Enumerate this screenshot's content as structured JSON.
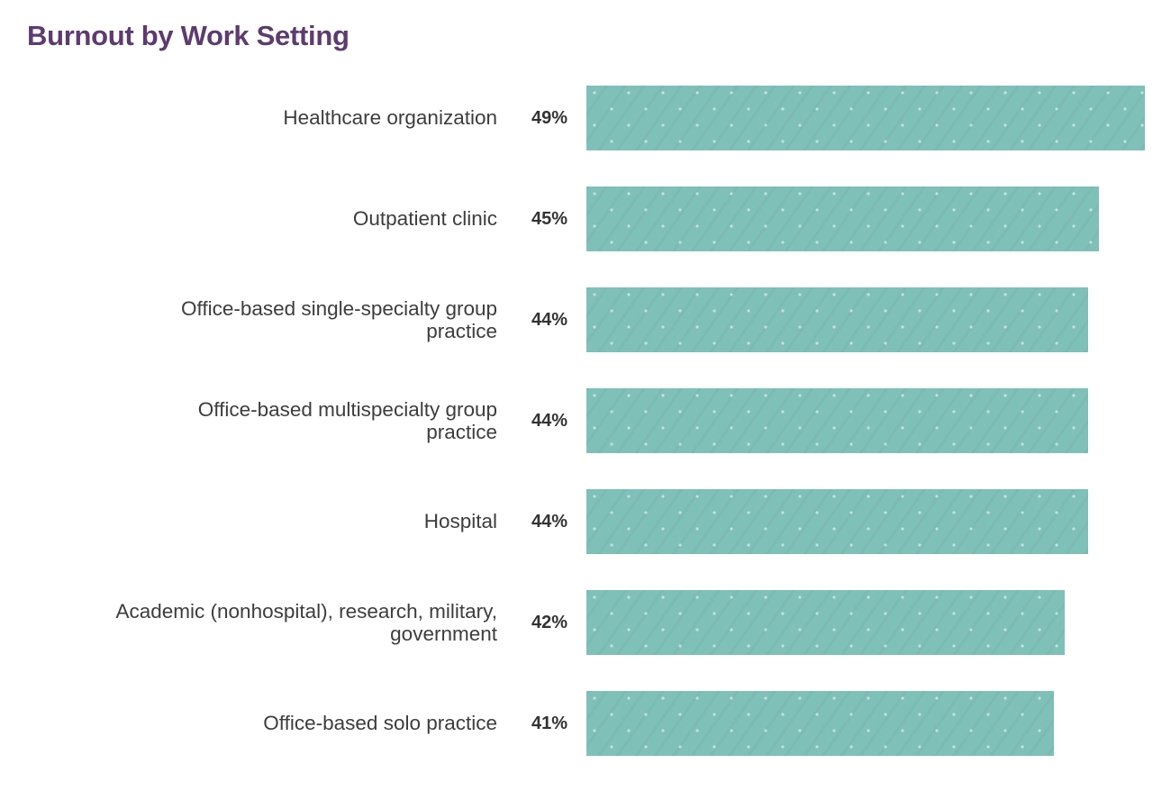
{
  "title": "Burnout by Work Setting",
  "colors": {
    "title": "#5d3b6f",
    "bar_fill": "#7fc0b9",
    "bar_dot": "#c8e4e0",
    "category_label": "#3d3d3d",
    "value_label": "#333333",
    "background": "#ffffff"
  },
  "chart_data": {
    "type": "bar",
    "orientation": "horizontal",
    "title": "Burnout by Work Setting",
    "xlabel": "",
    "ylabel": "",
    "xlim": [
      0,
      50
    ],
    "grid": false,
    "legend": false,
    "value_suffix": "%",
    "categories": [
      "Healthcare organization",
      "Outpatient clinic",
      "Office-based single-specialty group\npractice",
      "Office-based multispecialty group\npractice",
      "Hospital",
      "Academic (nonhospital), research, military,\ngovernment",
      "Office-based solo practice"
    ],
    "values": [
      49,
      45,
      44,
      44,
      44,
      42,
      41
    ],
    "value_labels": [
      "49%",
      "45%",
      "44%",
      "44%",
      "44%",
      "42%",
      "41%"
    ]
  }
}
